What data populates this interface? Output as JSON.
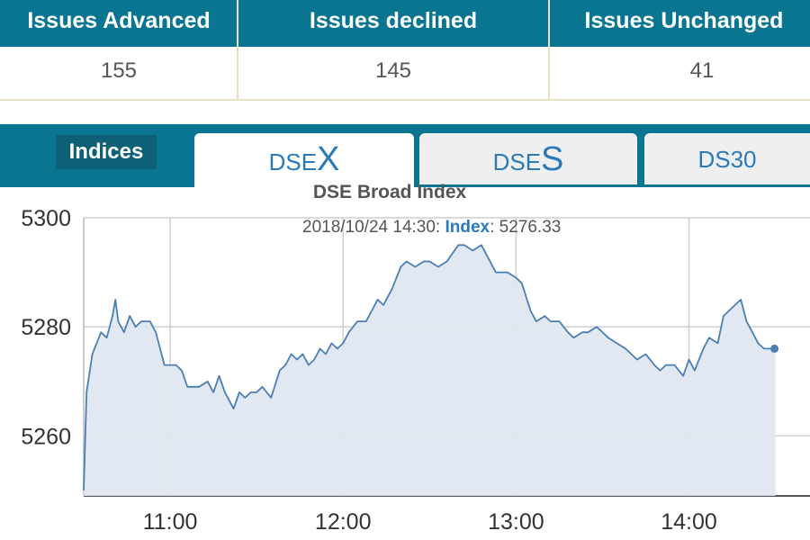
{
  "stats": {
    "headers": [
      "Issues Advanced",
      "Issues declined",
      "Issues Unchanged"
    ],
    "values": [
      "155",
      "145",
      "41"
    ]
  },
  "tabs": {
    "section_label": "Indices",
    "items": [
      {
        "prefix": "DSE",
        "suffix": "X",
        "active": true
      },
      {
        "prefix": "DSE",
        "suffix": "S",
        "active": false
      },
      {
        "label": "DS30",
        "active": false
      }
    ]
  },
  "tooltip": {
    "timestamp": "2018/10/24 14:30:",
    "series_label": "Index",
    "value": ": 5276.33"
  },
  "colors": {
    "header_bg": "#0a7590",
    "line": "#4a7fb5",
    "area": "#dfe6ef",
    "tab_text": "#2a7ab8"
  },
  "chart_data": {
    "type": "area",
    "title": "DSE Broad Index",
    "xlabel": "",
    "ylabel": "",
    "ylim": [
      5249,
      5300
    ],
    "yticks": [
      5260,
      5280,
      5300
    ],
    "ytick_labels": [
      "5260",
      "5280",
      "5300"
    ],
    "xrange_minutes": [
      630,
      882
    ],
    "xticks_minutes": [
      660,
      720,
      780,
      840
    ],
    "xtick_labels": [
      "11:00",
      "12:00",
      "13:00",
      "14:00"
    ],
    "grid": true,
    "series": [
      {
        "x": [
          "10:30",
          "10:31",
          "10:33",
          "10:36",
          "10:38",
          "10:40",
          "10:41",
          "10:42",
          "10:44",
          "10:46",
          "10:48",
          "10:50",
          "10:53",
          "10:55",
          "10:58",
          "11:00",
          "11:02",
          "11:04",
          "11:06",
          "11:08",
          "11:10",
          "11:13",
          "11:15",
          "11:17",
          "11:19",
          "11:20",
          "11:22",
          "11:24",
          "11:26",
          "11:28",
          "11:30",
          "11:32",
          "11:35",
          "11:38",
          "11:40",
          "11:42",
          "11:44",
          "11:46",
          "11:48",
          "11:50",
          "11:52",
          "11:54",
          "11:56",
          "11:58",
          "12:00",
          "12:02",
          "12:05",
          "12:08",
          "12:10",
          "12:12",
          "12:14",
          "12:17",
          "12:20",
          "12:22",
          "12:25",
          "12:28",
          "12:30",
          "12:33",
          "12:36",
          "12:40",
          "12:42",
          "12:45",
          "12:48",
          "12:50",
          "12:53",
          "12:55",
          "12:57",
          "13:00",
          "13:02",
          "13:05",
          "13:07",
          "13:10",
          "13:12",
          "13:15",
          "13:18",
          "13:20",
          "13:23",
          "13:25",
          "13:28",
          "13:30",
          "13:32",
          "13:35",
          "13:38",
          "13:40",
          "13:42",
          "13:45",
          "13:48",
          "13:50",
          "13:52",
          "13:55",
          "13:58",
          "14:00",
          "14:02",
          "14:05",
          "14:07",
          "14:10",
          "14:12",
          "14:14",
          "14:16",
          "14:18",
          "14:20",
          "14:22",
          "14:24",
          "14:26",
          "14:28",
          "14:30"
        ],
        "y": [
          5250,
          5268,
          5275,
          5279,
          5278,
          5282,
          5285,
          5281,
          5279,
          5282,
          5280,
          5281,
          5281,
          5279,
          5273,
          5273,
          5273,
          5272,
          5269,
          5269,
          5269,
          5270,
          5268,
          5271,
          5268,
          5267,
          5265,
          5268,
          5267,
          5268,
          5268,
          5269,
          5267,
          5272,
          5273,
          5275,
          5274,
          5275,
          5273,
          5274,
          5276,
          5275,
          5277,
          5276,
          5277,
          5279,
          5281,
          5281,
          5283,
          5285,
          5284,
          5287,
          5291,
          5292,
          5291,
          5292,
          5292,
          5291,
          5292,
          5295,
          5295,
          5294,
          5295,
          5293,
          5290,
          5290,
          5290,
          5289,
          5288,
          5283,
          5281,
          5282,
          5281,
          5281,
          5279,
          5278,
          5279,
          5279,
          5280,
          5279,
          5278,
          5277,
          5276,
          5275,
          5274,
          5275,
          5273,
          5272,
          5273,
          5273,
          5271,
          5274,
          5272,
          5276,
          5278,
          5277,
          5282,
          5283,
          5284,
          5285,
          5281,
          5279,
          5277,
          5276,
          5276,
          5276
        ]
      }
    ]
  }
}
